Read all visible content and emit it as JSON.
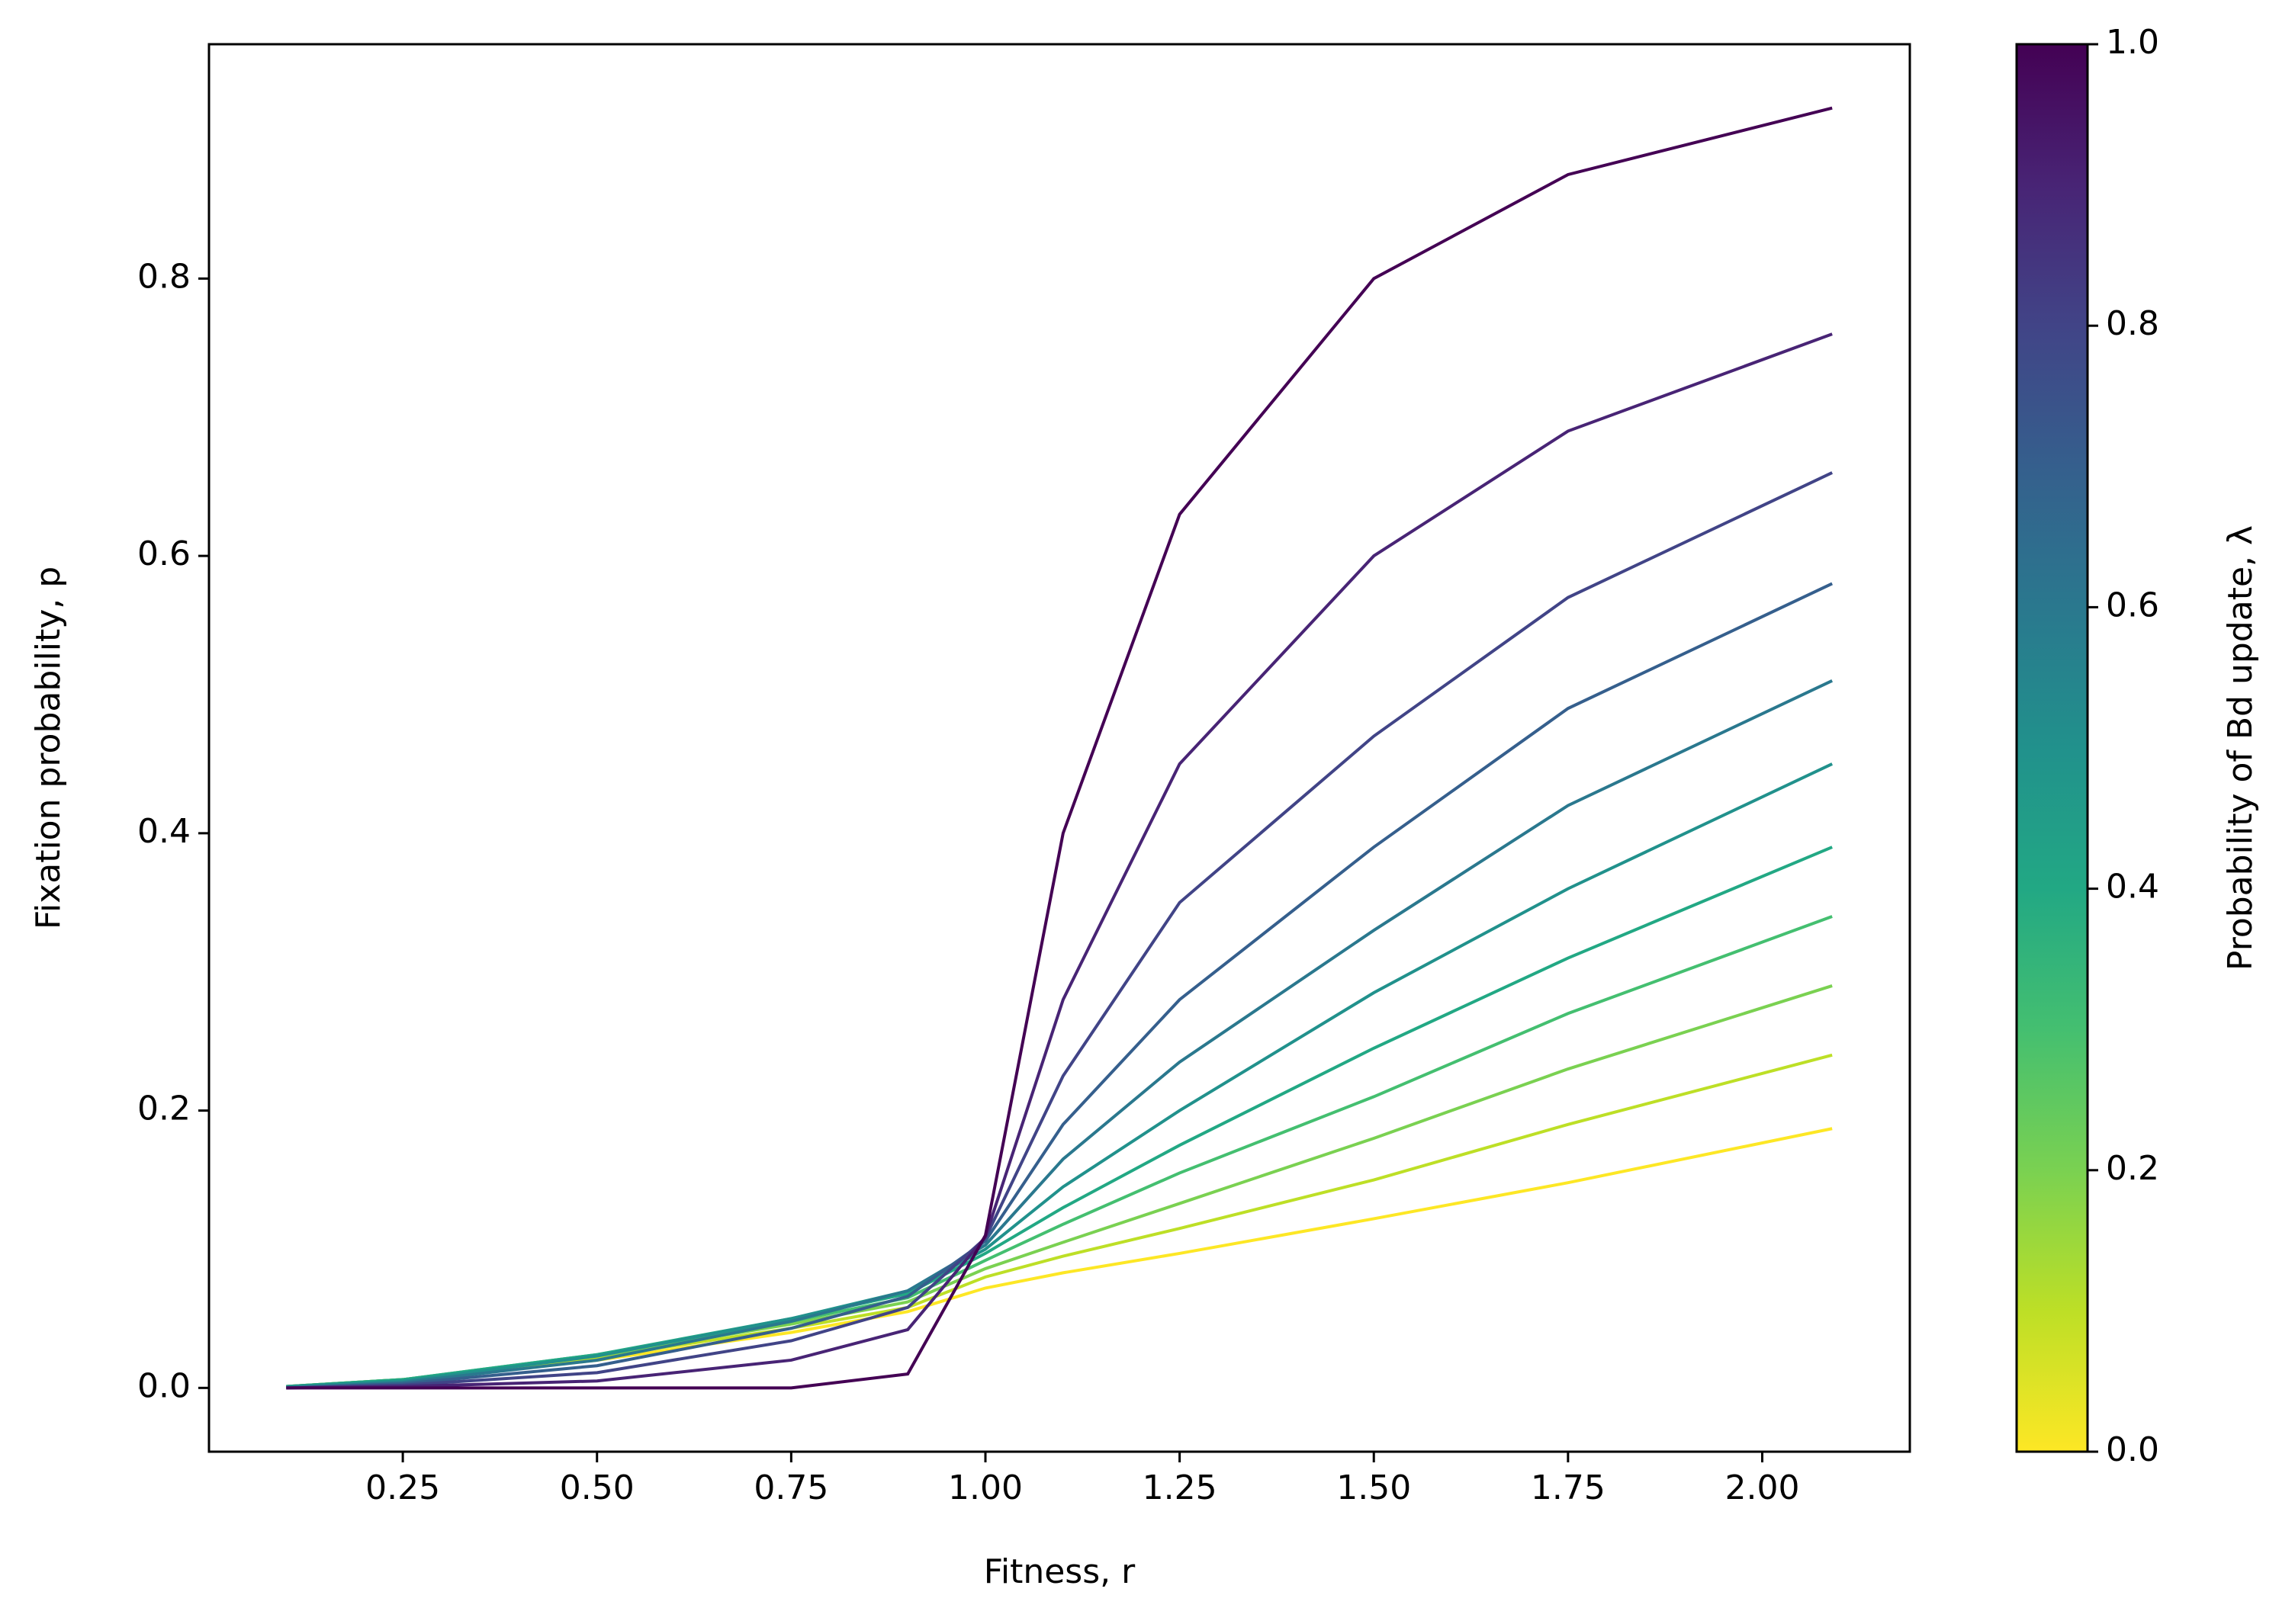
{
  "chart_data": {
    "type": "line",
    "xlabel": "Fitness, r",
    "ylabel": "Fixation probability, p",
    "x": [
      0.1,
      0.25,
      0.5,
      0.75,
      0.9,
      1.0,
      1.1,
      1.25,
      1.5,
      1.75,
      2.09
    ],
    "series": [
      {
        "color": "#fde725",
        "values": [
          0.001,
          0.005,
          0.02,
          0.04,
          0.055,
          0.072,
          0.083,
          0.097,
          0.122,
          0.148,
          0.187
        ]
      },
      {
        "color": "#bddf26",
        "values": [
          0.001,
          0.006,
          0.022,
          0.043,
          0.058,
          0.08,
          0.095,
          0.115,
          0.15,
          0.19,
          0.24
        ]
      },
      {
        "color": "#7ad151",
        "values": [
          0.001,
          0.006,
          0.023,
          0.046,
          0.062,
          0.086,
          0.105,
          0.133,
          0.18,
          0.23,
          0.29
        ]
      },
      {
        "color": "#44bf70",
        "values": [
          0.001,
          0.006,
          0.024,
          0.048,
          0.065,
          0.092,
          0.118,
          0.155,
          0.21,
          0.27,
          0.34
        ]
      },
      {
        "color": "#22a884",
        "values": [
          0.001,
          0.006,
          0.024,
          0.05,
          0.068,
          0.097,
          0.13,
          0.175,
          0.245,
          0.31,
          0.39
        ]
      },
      {
        "color": "#21918c",
        "values": [
          0.001,
          0.005,
          0.023,
          0.05,
          0.07,
          0.1,
          0.145,
          0.2,
          0.285,
          0.36,
          0.45
        ]
      },
      {
        "color": "#2a788e",
        "values": [
          0,
          0.004,
          0.02,
          0.048,
          0.07,
          0.103,
          0.165,
          0.235,
          0.33,
          0.42,
          0.51
        ]
      },
      {
        "color": "#355f8d",
        "values": [
          0,
          0.003,
          0.016,
          0.043,
          0.066,
          0.106,
          0.19,
          0.28,
          0.39,
          0.49,
          0.58
        ]
      },
      {
        "color": "#414487",
        "values": [
          0,
          0.002,
          0.011,
          0.034,
          0.058,
          0.108,
          0.225,
          0.35,
          0.47,
          0.57,
          0.66
        ]
      },
      {
        "color": "#482475",
        "values": [
          0,
          0.001,
          0.005,
          0.02,
          0.042,
          0.109,
          0.28,
          0.45,
          0.6,
          0.69,
          0.76
        ]
      },
      {
        "color": "#440154",
        "values": [
          0,
          0,
          0,
          0,
          0.01,
          0.11,
          0.4,
          0.63,
          0.8,
          0.875,
          0.923
        ]
      }
    ],
    "xlim": [
      0.0005,
      2.19
    ],
    "ylim": [
      -0.046,
      0.969
    ],
    "xticks": [
      0.25,
      {
        "value": 0.5,
        "label": "0.50"
      },
      0.75,
      {
        "value": 1,
        "label": "1.00"
      },
      1.25,
      {
        "value": 1.5,
        "label": "1.50"
      },
      1.75,
      {
        "value": 2,
        "label": "2.00"
      }
    ],
    "yticks": [
      {
        "value": 0,
        "label": "0.0"
      },
      0.2,
      0.4,
      0.6,
      0.8
    ],
    "colorbar": {
      "label": "Probability of Bd update, λ",
      "lim": [
        0,
        1
      ],
      "ticks": [
        {
          "value": 0,
          "label": "0.0"
        },
        0.2,
        0.4,
        0.6,
        0.8,
        {
          "value": 1,
          "label": "1.0"
        }
      ],
      "colors": [
        "#fde725",
        "#bddf26",
        "#7ad151",
        "#44bf70",
        "#22a884",
        "#21918c",
        "#2a788e",
        "#355f8d",
        "#414487",
        "#482475",
        "#440154"
      ]
    }
  }
}
